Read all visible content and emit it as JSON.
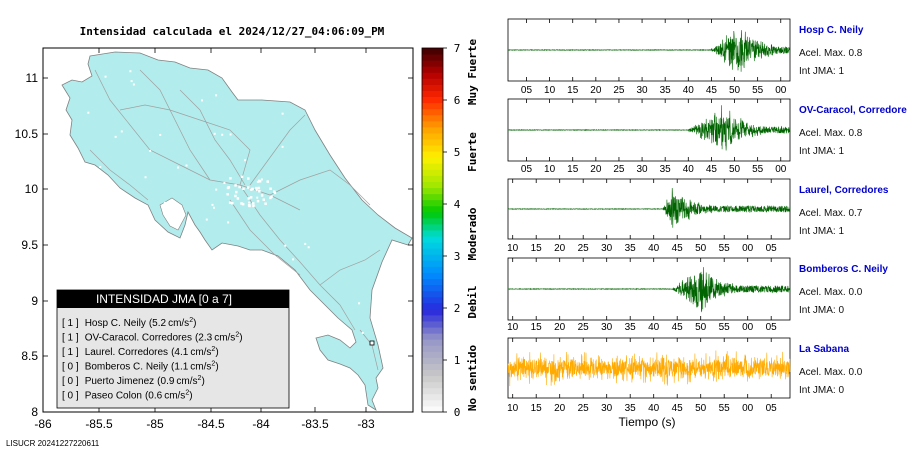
{
  "map_title": "Intensidad calculada el 2024/12/27_04:06:09_PM",
  "footer_code": "LISUCR 20241227220611",
  "map": {
    "lon_ticks": [
      "-86",
      "-85.5",
      "-85",
      "-84.5",
      "-84",
      "-83.5",
      "-83"
    ],
    "lat_ticks": [
      "11",
      "10.5",
      "10",
      "9.5",
      "9",
      "8.5",
      "8"
    ],
    "land_color": "#b2ecec"
  },
  "legend": {
    "title": "INTENSIDAD JMA [0 a 7]",
    "rows": [
      {
        "level": "[ 1 ]",
        "station": "Hosp C. Neily",
        "accel": "5.2",
        "unit": "cm/s",
        "sup": "2",
        "close": ")"
      },
      {
        "level": "[ 1 ]",
        "station": "OV-Caracol. Corredores",
        "accel": "2.3",
        "unit": "cm/s",
        "sup": "2",
        "close": ")"
      },
      {
        "level": "[ 1 ]",
        "station": "Laurel. Corredores",
        "accel": "4.1",
        "unit": "cm/s",
        "sup": "2",
        "close": ")"
      },
      {
        "level": "[ 0 ]",
        "station": "Bomberos C. Neily",
        "accel": "1.1",
        "unit": "cm/s",
        "sup": "2",
        "close": ")"
      },
      {
        "level": "[ 0 ]",
        "station": "Puerto Jimenez",
        "accel": "0.9",
        "unit": "cm/s",
        "sup": "2",
        "close": ")"
      },
      {
        "level": "[ 0 ]",
        "station": "Paseo Colon",
        "accel": "0.6",
        "unit": "cm/s",
        "sup": "2",
        "close": ")"
      }
    ]
  },
  "colorbar": {
    "ticks": [
      "0",
      "1",
      "2",
      "3",
      "4",
      "5",
      "6",
      "7"
    ],
    "labels": [
      "No sentido",
      "Debil",
      "Moderado",
      "Fuerte",
      "Muy Fuerte"
    ]
  },
  "chart_data": {
    "type": "line",
    "xlabel": "Tiempo (s)",
    "traces": [
      {
        "name": "Hosp C. Neily",
        "accel_label": "Acel. Max. 0.8",
        "int_label": "Int JMA: 1",
        "color": "#006400",
        "tick_labels": [
          "05",
          "10",
          "15",
          "20",
          "25",
          "30",
          "35",
          "40",
          "45",
          "50",
          "55",
          "00"
        ],
        "tick_seconds": [
          5,
          10,
          15,
          20,
          25,
          30,
          35,
          40,
          45,
          50,
          55,
          60
        ],
        "window": [
          1,
          62
        ],
        "onset": 45,
        "peak": 51,
        "amp": 1.0
      },
      {
        "name": "OV-Caracol, Corredore",
        "accel_label": "Acel. Max. 0.8",
        "int_label": "Int JMA: 1",
        "color": "#006400",
        "tick_labels": [
          "05",
          "10",
          "15",
          "20",
          "25",
          "30",
          "35",
          "40",
          "45",
          "50",
          "55",
          "00"
        ],
        "tick_seconds": [
          5,
          10,
          15,
          20,
          25,
          30,
          35,
          40,
          45,
          50,
          55,
          60
        ],
        "window": [
          1,
          62
        ],
        "onset": 40,
        "peak": 48,
        "amp": 1.0
      },
      {
        "name": "Laurel, Corredores",
        "accel_label": "Acel. Max. 0.7",
        "int_label": "Int JMA: 1",
        "color": "#006400",
        "tick_labels": [
          "10",
          "15",
          "20",
          "25",
          "30",
          "35",
          "40",
          "45",
          "50",
          "55",
          "00",
          "05"
        ],
        "tick_seconds": [
          10,
          15,
          20,
          25,
          30,
          35,
          40,
          45,
          50,
          55,
          60,
          65
        ],
        "window": [
          9,
          69
        ],
        "onset": 42,
        "peak": 44,
        "amp": 0.95
      },
      {
        "name": "Bomberos C. Neily",
        "accel_label": "Acel. Max. 0.0",
        "int_label": "Int JMA: 0",
        "color": "#006400",
        "tick_labels": [
          "10",
          "15",
          "20",
          "25",
          "30",
          "35",
          "40",
          "45",
          "50",
          "55",
          "00",
          "05"
        ],
        "tick_seconds": [
          10,
          15,
          20,
          25,
          30,
          35,
          40,
          45,
          50,
          55,
          60,
          65
        ],
        "window": [
          9,
          69
        ],
        "onset": 44,
        "peak": 50,
        "amp": 1.0
      },
      {
        "name": "La Sabana",
        "accel_label": "Acel. Max. 0.0",
        "int_label": "Int JMA: 0",
        "color": "#ffaa00",
        "tick_labels": [
          "10",
          "15",
          "20",
          "25",
          "30",
          "35",
          "40",
          "45",
          "50",
          "55",
          "00",
          "05"
        ],
        "tick_seconds": [
          10,
          15,
          20,
          25,
          30,
          35,
          40,
          45,
          50,
          55,
          60,
          65
        ],
        "window": [
          9,
          69
        ],
        "onset": 9,
        "peak": 0,
        "amp": 0.7
      }
    ]
  }
}
